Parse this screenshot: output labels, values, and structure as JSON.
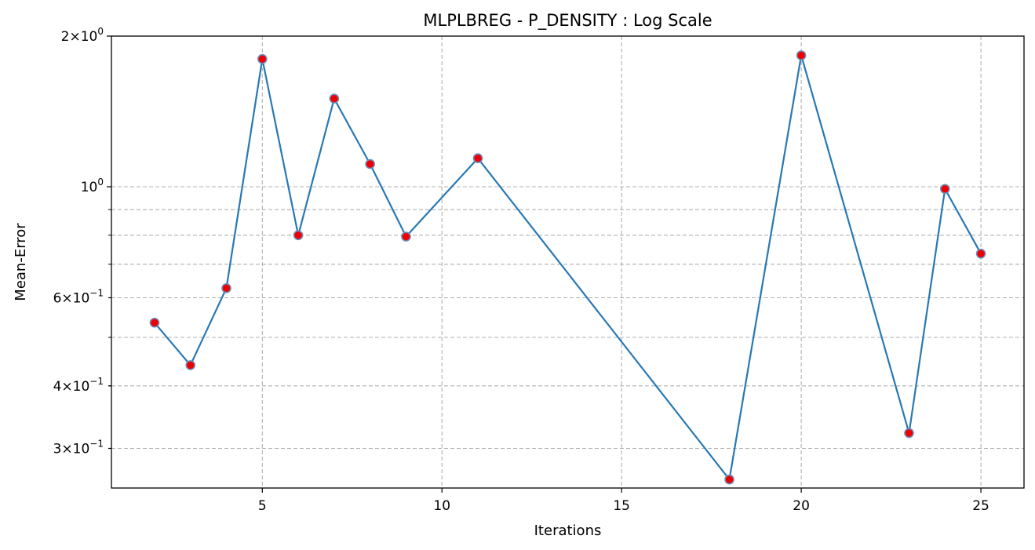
{
  "chart_data": {
    "type": "line",
    "title": "MLPLBREG - P_DENSITY : Log Scale",
    "xlabel": "Iterations",
    "ylabel": "Mean-Error",
    "yscale": "log",
    "grid": true,
    "xlim": [
      0.8,
      26.2
    ],
    "ylim": [
      0.25,
      2.0
    ],
    "xticks": [
      {
        "value": 5,
        "label": "5"
      },
      {
        "value": 10,
        "label": "10"
      },
      {
        "value": 15,
        "label": "15"
      },
      {
        "value": 20,
        "label": "20"
      },
      {
        "value": 25,
        "label": "25"
      }
    ],
    "yticks_major": [
      {
        "value": 1.0,
        "mantissa": "",
        "exp": "0"
      },
      {
        "value": 2.0,
        "mantissa": "2",
        "exp": "0"
      }
    ],
    "yticks_minor_labeled": [
      {
        "value": 0.3,
        "mantissa": "3",
        "exp": "−1"
      },
      {
        "value": 0.4,
        "mantissa": "4",
        "exp": "−1"
      },
      {
        "value": 0.6,
        "mantissa": "6",
        "exp": "−1"
      }
    ],
    "ygrid_values": [
      0.3,
      0.4,
      0.5,
      0.6,
      0.7,
      0.8,
      0.9,
      1.0
    ],
    "series": [
      {
        "x": [
          2,
          3,
          4,
          5,
          6,
          7,
          8,
          9,
          11,
          18,
          20,
          23,
          24,
          25
        ],
        "y": [
          0.535,
          0.44,
          0.627,
          1.8,
          0.8,
          1.5,
          1.11,
          0.795,
          1.14,
          0.26,
          1.83,
          0.322,
          0.99,
          0.735
        ],
        "line_color": "#2878b4",
        "marker_face": "#ee0000",
        "marker_edge": "#6d8cb8"
      }
    ]
  }
}
